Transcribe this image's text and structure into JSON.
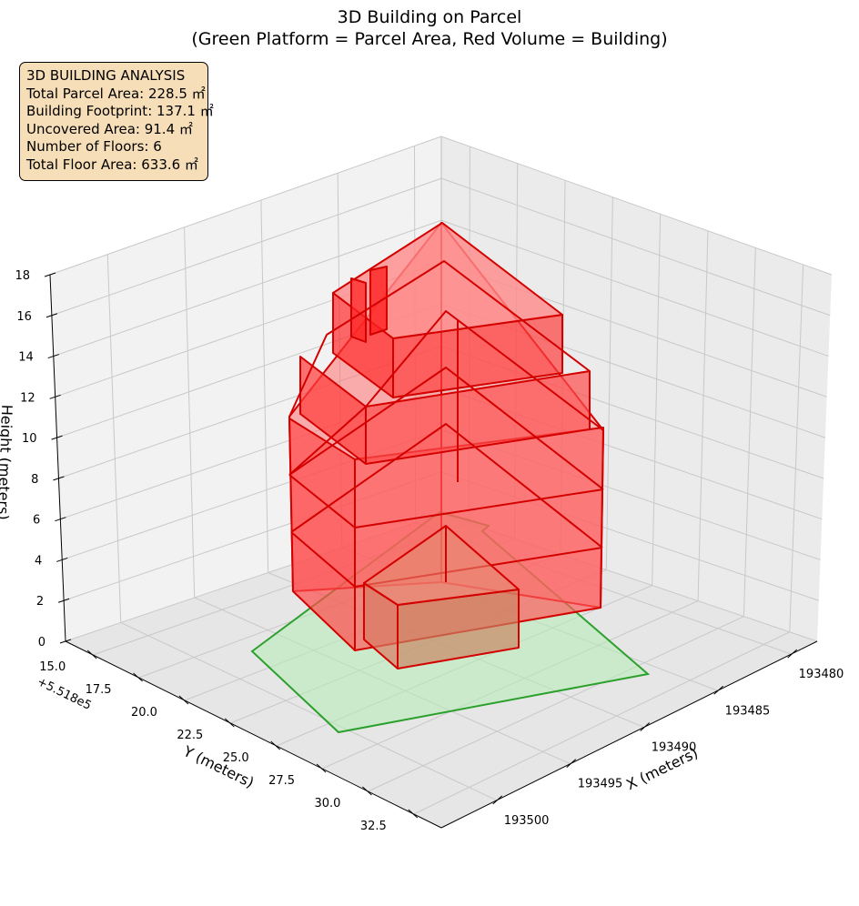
{
  "title": "3D Building on Parcel",
  "subtitle": "(Green Platform = Parcel Area, Red Volume = Building)",
  "info_box": {
    "heading": "3D BUILDING ANALYSIS",
    "lines": [
      "Total Parcel Area: 228.5 ㎡",
      "Building Footprint: 137.1 ㎡",
      "Uncovered Area: 91.4 ㎡",
      "Number of Floors: 6",
      "Total Floor Area: 633.6 ㎡"
    ]
  },
  "chart_data": {
    "type": "3d-polygon-volume",
    "xlabel": "X (meters)",
    "ylabel": "Y (meters)",
    "zlabel": "Height (meters)",
    "y_offset_label": "+5.518e5",
    "x_ticks": [
      "193480",
      "193485",
      "193490",
      "193495",
      "193500"
    ],
    "y_ticks": [
      "15.0",
      "17.5",
      "20.0",
      "22.5",
      "25.0",
      "27.5",
      "30.0",
      "32.5"
    ],
    "z_ticks": [
      "0",
      "2",
      "4",
      "6",
      "8",
      "10",
      "12",
      "14",
      "16",
      "18"
    ],
    "zlim": [
      0,
      18
    ],
    "grid": true,
    "parcel": {
      "color": "#2ca02c",
      "fill": "#90ee90",
      "label": "Parcel Area"
    },
    "building": {
      "color": "#dd0000",
      "fill": "#ff0000",
      "label": "Building",
      "floors": 6
    }
  }
}
